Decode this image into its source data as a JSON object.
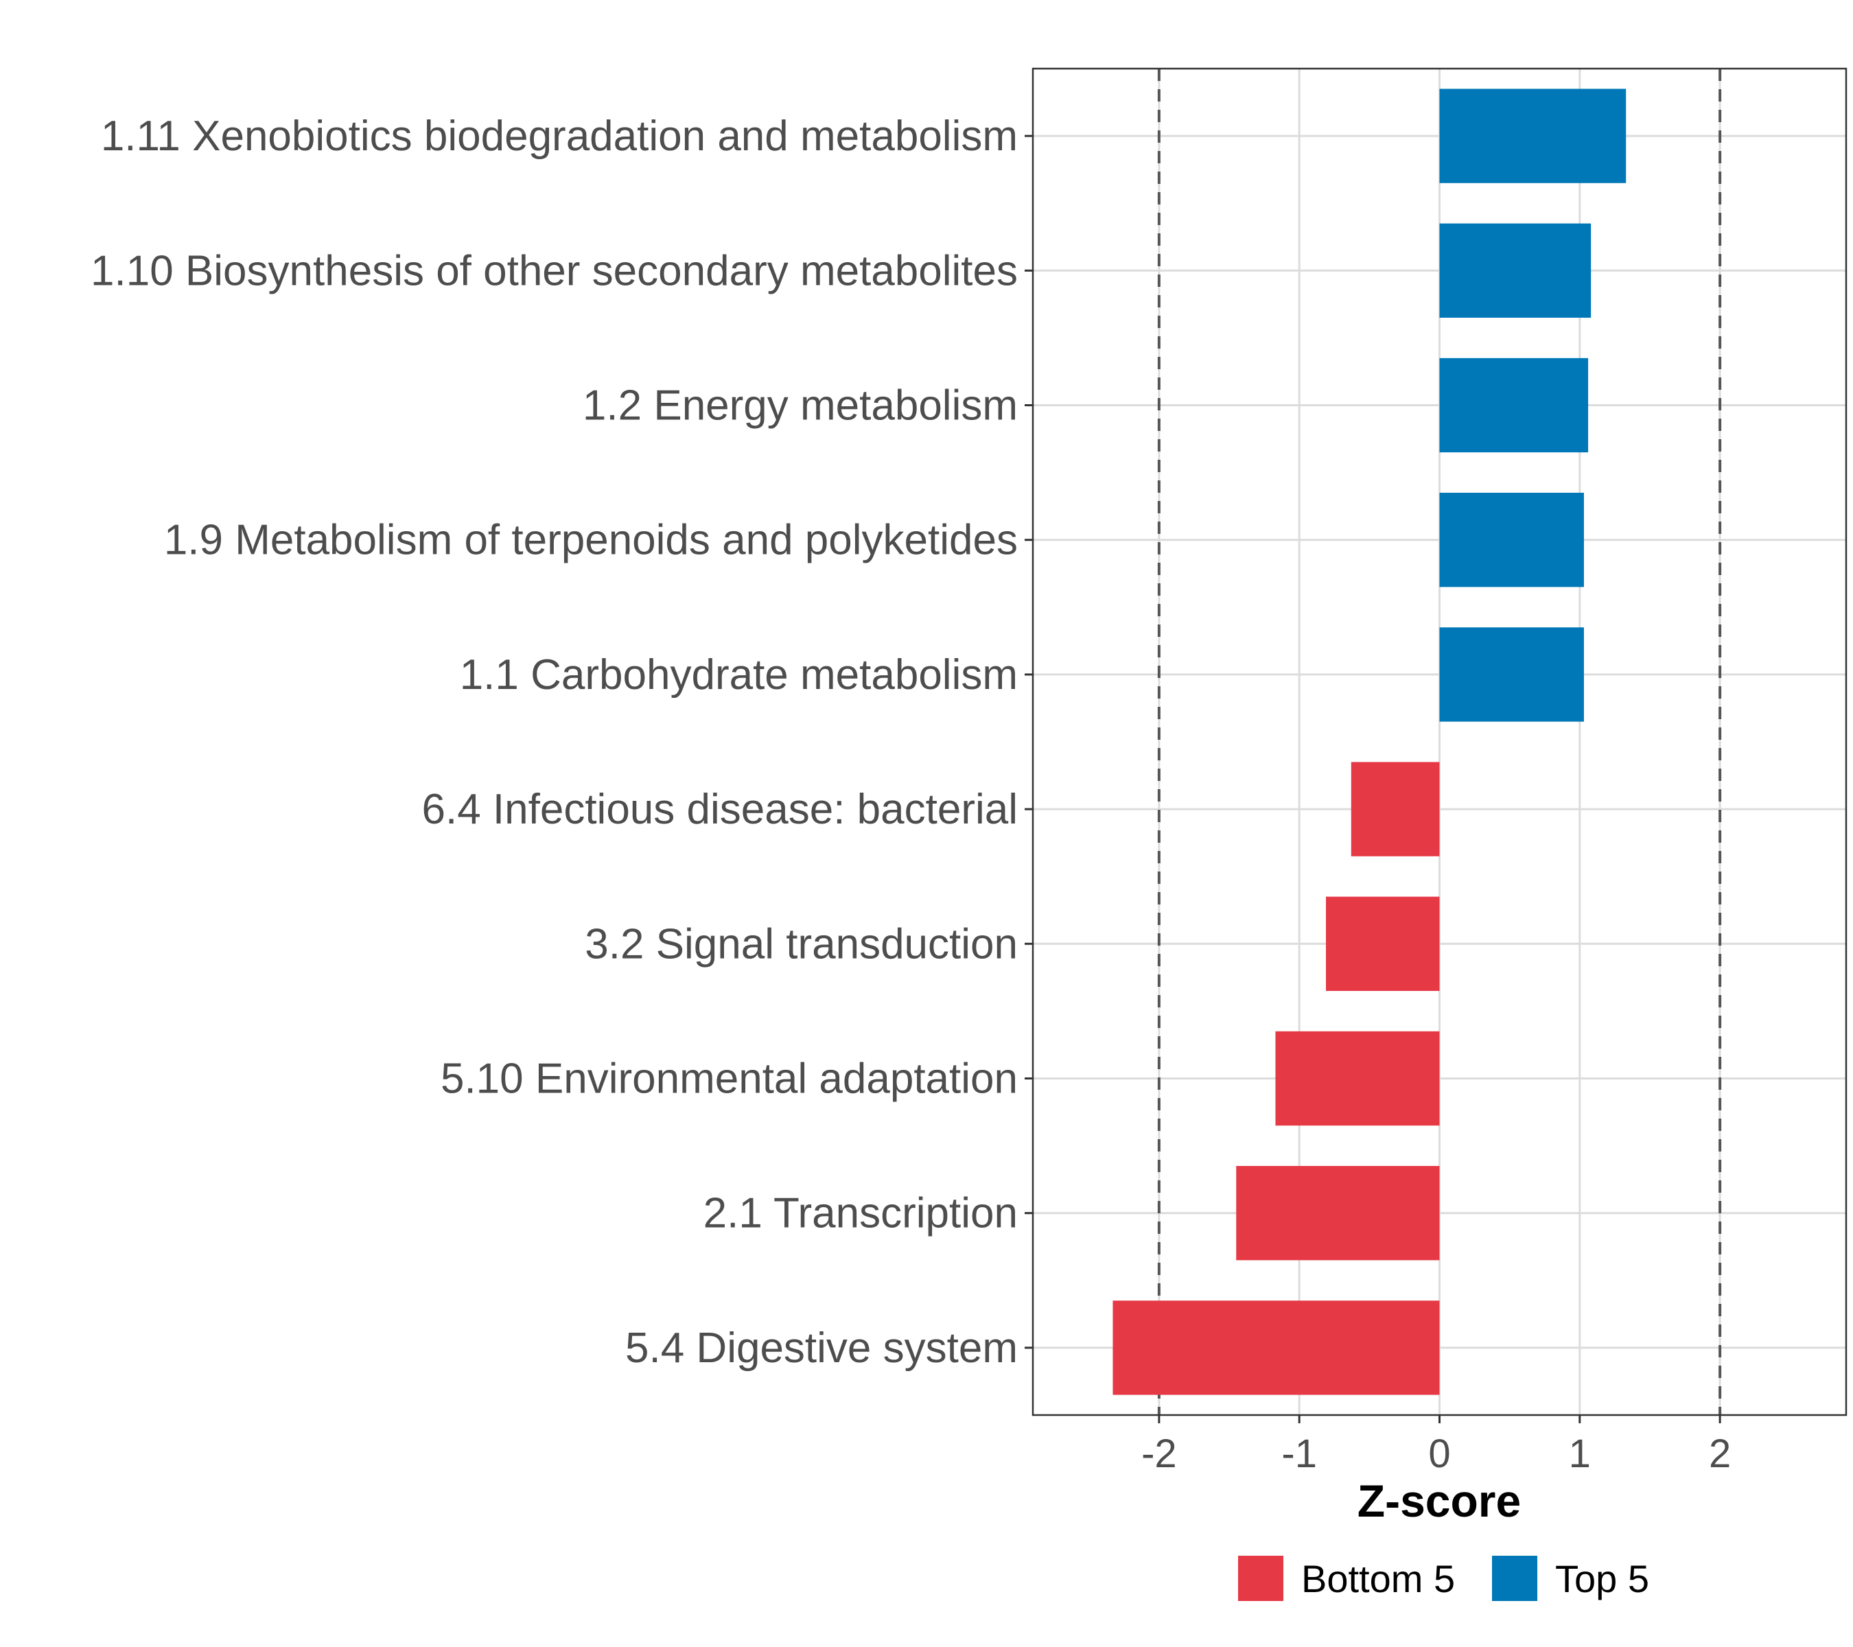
{
  "chart_data": {
    "type": "bar",
    "orientation": "horizontal",
    "categories": [
      "1.11 Xenobiotics biodegradation and metabolism",
      "1.10 Biosynthesis of other secondary metabolites",
      "1.2 Energy metabolism",
      "1.9 Metabolism of terpenoids and polyketides",
      "1.1 Carbohydrate metabolism",
      "6.4 Infectious disease: bacterial",
      "3.2 Signal transduction",
      "5.10 Environmental adaptation",
      "2.1 Transcription",
      "5.4 Digestive system"
    ],
    "values": [
      1.33,
      1.08,
      1.06,
      1.03,
      1.03,
      -0.63,
      -0.81,
      -1.17,
      -1.45,
      -2.33
    ],
    "groups": [
      "Top 5",
      "Top 5",
      "Top 5",
      "Top 5",
      "Top 5",
      "Bottom 5",
      "Bottom 5",
      "Bottom 5",
      "Bottom 5",
      "Bottom 5"
    ],
    "xlabel": "Z-score",
    "ylabel": "",
    "xlim": [
      -2.9,
      2.9
    ],
    "xticks": [
      "-2",
      "-1",
      "0",
      "1",
      "2"
    ],
    "reference_lines": [
      -2,
      2
    ],
    "grid": true,
    "legend": {
      "position": "bottom",
      "entries": [
        {
          "label": "Bottom 5",
          "color": "#e63946"
        },
        {
          "label": "Top 5",
          "color": "#0077b6"
        }
      ]
    }
  },
  "colors": {
    "top": "#0077b6",
    "bottom": "#e63946",
    "grid": "#dcdcdc",
    "reference": "#555555"
  }
}
